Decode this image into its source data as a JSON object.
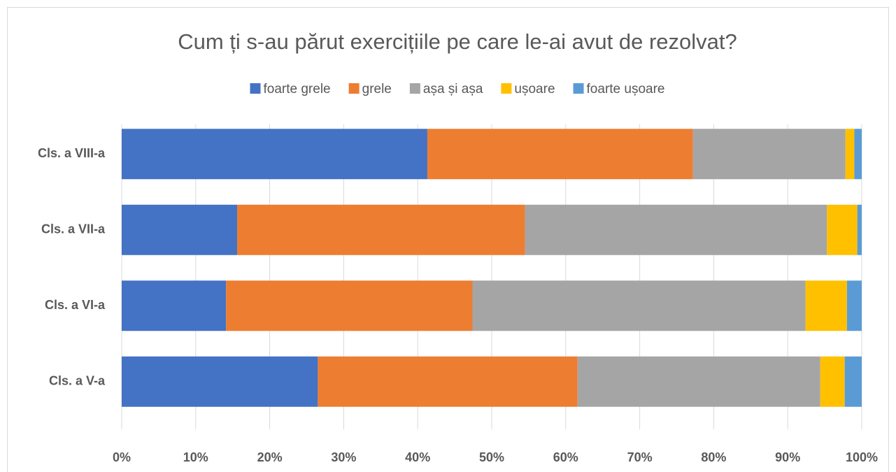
{
  "chart_data": {
    "type": "stacked_bar_horizontal_100",
    "title": "Cum ți s-au părut exercițiile pe care le-ai avut de rezolvat?",
    "categories": [
      "Cls. a V-a",
      "Cls. a VI-a",
      "Cls. a VII-a",
      "Cls. a VIII-a"
    ],
    "series": [
      {
        "name": "foarte grele",
        "color": "#4472c4",
        "values": [
          26.5,
          14.1,
          15.6,
          41.3
        ]
      },
      {
        "name": "grele",
        "color": "#ed7d31",
        "values": [
          35.1,
          33.3,
          38.9,
          35.9
        ]
      },
      {
        "name": "așa și așa",
        "color": "#a5a5a5",
        "values": [
          32.8,
          45.0,
          40.8,
          20.6
        ]
      },
      {
        "name": "ușoare",
        "color": "#ffc000",
        "values": [
          3.3,
          5.6,
          4.1,
          1.2
        ]
      },
      {
        "name": "foarte ușoare",
        "color": "#5b9bd5",
        "values": [
          2.3,
          2.0,
          0.6,
          1.0
        ]
      }
    ],
    "xlim": [
      0,
      100
    ],
    "xticks": [
      {
        "value": 0,
        "label": "0%"
      },
      {
        "value": 10,
        "label": "10%"
      },
      {
        "value": 20,
        "label": "20%"
      },
      {
        "value": 30,
        "label": "30%"
      },
      {
        "value": 40,
        "label": "40%"
      },
      {
        "value": 50,
        "label": "50%"
      },
      {
        "value": 60,
        "label": "60%"
      },
      {
        "value": 70,
        "label": "70%"
      },
      {
        "value": 80,
        "label": "80%"
      },
      {
        "value": 90,
        "label": "90%"
      },
      {
        "value": 100,
        "label": "100%"
      }
    ],
    "grid": true,
    "legend": "top"
  }
}
